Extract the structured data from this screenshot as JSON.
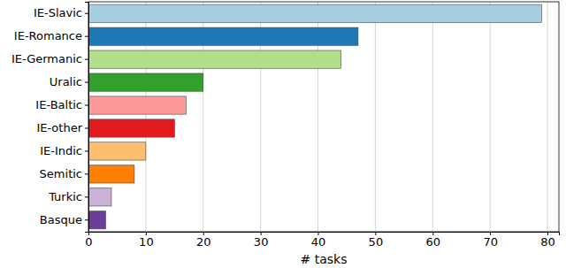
{
  "chart_data": {
    "type": "bar",
    "orientation": "horizontal",
    "categories": [
      "IE-Slavic",
      "IE-Romance",
      "IE-Germanic",
      "Uralic",
      "IE-Baltic",
      "IE-other",
      "IE-Indic",
      "Semitic",
      "Turkic",
      "Basque"
    ],
    "values": [
      79,
      47,
      44,
      20,
      17,
      15,
      10,
      8,
      4,
      3
    ],
    "colors": [
      "#a6cee3",
      "#1f78b4",
      "#b2df8a",
      "#33a02c",
      "#fb9a99",
      "#e31a1c",
      "#fdbf6f",
      "#ff7f00",
      "#cab2d6",
      "#6a3d9a"
    ],
    "x_label": "# tasks",
    "xlim": [
      0,
      82
    ],
    "xticks": [
      0,
      10,
      20,
      30,
      40,
      50,
      60,
      70,
      80
    ],
    "grid": true
  }
}
